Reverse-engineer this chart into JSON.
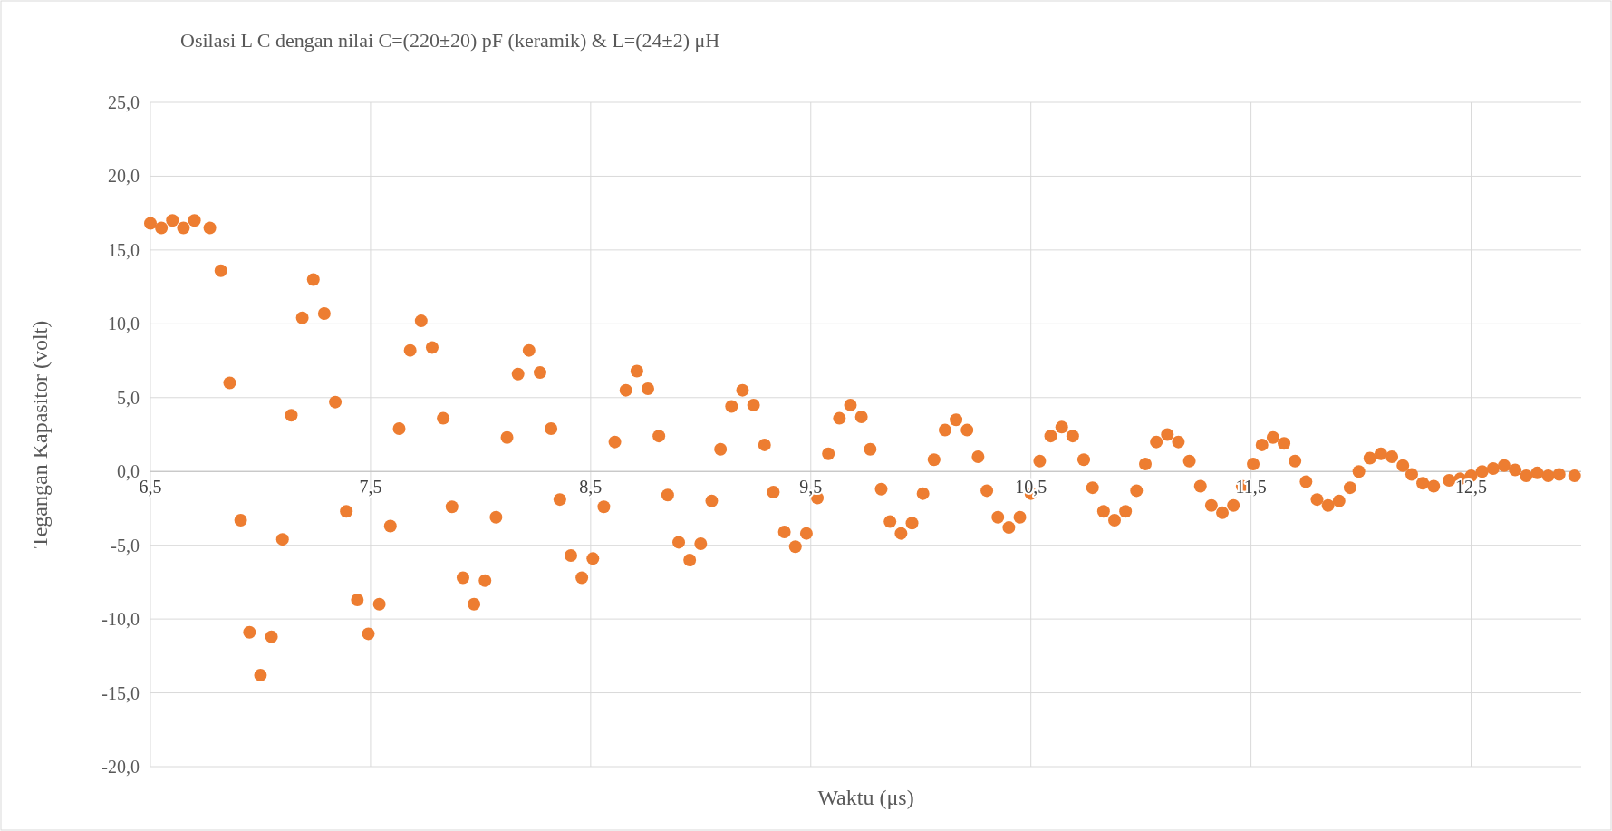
{
  "chart_data": {
    "type": "scatter",
    "title": "Osilasi L C dengan nilai C=(220±20) pF (keramik) & L=(24±2) μH",
    "xlabel": "Waktu (μs)",
    "ylabel": "Tegangan Kapasitor (volt)",
    "xlim": [
      6.5,
      13.0
    ],
    "ylim": [
      -20,
      25
    ],
    "xticks": [
      {
        "value": 6.5,
        "label": "6,5"
      },
      {
        "value": 7.5,
        "label": "7,5"
      },
      {
        "value": 8.5,
        "label": "8,5"
      },
      {
        "value": 9.5,
        "label": "9,5"
      },
      {
        "value": 10.5,
        "label": "10,5"
      },
      {
        "value": 11.5,
        "label": "11,5"
      },
      {
        "value": 12.5,
        "label": "12,5"
      }
    ],
    "yticks": [
      {
        "value": -20,
        "label": "-20,0"
      },
      {
        "value": -15,
        "label": "-15,0"
      },
      {
        "value": -10,
        "label": "-10,0"
      },
      {
        "value": -5,
        "label": "-5,0"
      },
      {
        "value": 0,
        "label": "0,0"
      },
      {
        "value": 5,
        "label": "5,0"
      },
      {
        "value": 10,
        "label": "10,0"
      },
      {
        "value": 15,
        "label": "15,0"
      },
      {
        "value": 20,
        "label": "20,0"
      },
      {
        "value": 25,
        "label": "25,0"
      }
    ],
    "grid": true,
    "marker": "circle",
    "x": [
      6.5,
      6.55,
      6.6,
      6.65,
      6.7,
      6.77,
      6.82,
      6.86,
      6.91,
      6.95,
      7.0,
      7.05,
      7.1,
      7.14,
      7.19,
      7.24,
      7.29,
      7.34,
      7.39,
      7.44,
      7.49,
      7.54,
      7.59,
      7.63,
      7.68,
      7.73,
      7.78,
      7.83,
      7.87,
      7.92,
      7.97,
      8.02,
      8.07,
      8.12,
      8.17,
      8.22,
      8.27,
      8.32,
      8.36,
      8.41,
      8.46,
      8.51,
      8.56,
      8.61,
      8.66,
      8.71,
      8.76,
      8.81,
      8.85,
      8.9,
      8.95,
      9.0,
      9.05,
      9.09,
      9.14,
      9.19,
      9.24,
      9.29,
      9.33,
      9.38,
      9.43,
      9.48,
      9.53,
      9.58,
      9.63,
      9.68,
      9.73,
      9.77,
      9.82,
      9.86,
      9.91,
      9.96,
      10.01,
      10.06,
      10.11,
      10.16,
      10.21,
      10.26,
      10.3,
      10.35,
      10.4,
      10.45,
      10.5,
      10.54,
      10.59,
      10.64,
      10.69,
      10.74,
      10.78,
      10.83,
      10.88,
      10.93,
      10.98,
      11.02,
      11.07,
      11.12,
      11.17,
      11.22,
      11.27,
      11.32,
      11.37,
      11.42,
      11.46,
      11.51,
      11.55,
      11.6,
      11.65,
      11.7,
      11.75,
      11.8,
      11.85,
      11.9,
      11.95,
      11.99,
      12.04,
      12.09,
      12.14,
      12.19,
      12.23,
      12.28,
      12.33,
      12.4,
      12.45,
      12.5,
      12.55,
      12.6,
      12.65,
      12.7,
      12.75,
      12.8,
      12.85,
      12.9,
      12.97
    ],
    "series": [
      {
        "color": "#ed7d31",
        "values": [
          16.8,
          16.5,
          17.0,
          16.5,
          17.0,
          16.5,
          13.6,
          6.0,
          -3.3,
          -10.9,
          -13.8,
          -11.2,
          -4.6,
          3.8,
          10.4,
          13.0,
          10.7,
          4.7,
          -2.7,
          -8.7,
          -11.0,
          -9.0,
          -3.7,
          2.9,
          8.2,
          10.2,
          8.4,
          3.6,
          -2.4,
          -7.2,
          -9.0,
          -7.4,
          -3.1,
          2.3,
          6.6,
          8.2,
          6.7,
          2.9,
          -1.9,
          -5.7,
          -7.2,
          -5.9,
          -2.4,
          2.0,
          5.5,
          6.8,
          5.6,
          2.4,
          -1.6,
          -4.8,
          -6.0,
          -4.9,
          -2.0,
          1.5,
          4.4,
          5.5,
          4.5,
          1.8,
          -1.4,
          -4.1,
          -5.1,
          -4.2,
          -1.8,
          1.2,
          3.6,
          4.5,
          3.7,
          1.5,
          -1.2,
          -3.4,
          -4.2,
          -3.5,
          -1.5,
          0.8,
          2.8,
          3.5,
          2.8,
          1.0,
          -1.3,
          -3.1,
          -3.8,
          -3.1,
          -1.5,
          0.7,
          2.4,
          3.0,
          2.4,
          0.8,
          -1.1,
          -2.7,
          -3.3,
          -2.7,
          -1.3,
          0.5,
          2.0,
          2.5,
          2.0,
          0.7,
          -1.0,
          -2.3,
          -2.8,
          -2.3,
          -1.0,
          0.5,
          1.8,
          2.3,
          1.9,
          0.7,
          -0.7,
          -1.9,
          -2.3,
          -2.0,
          -1.1,
          0.0,
          0.9,
          1.2,
          1.0,
          0.4,
          -0.2,
          -0.8,
          -1.0,
          -0.6,
          -0.5,
          -0.3,
          0.0,
          0.2,
          0.4,
          0.1,
          -0.3,
          -0.1,
          -0.3,
          -0.2,
          -0.3
        ]
      }
    ]
  }
}
